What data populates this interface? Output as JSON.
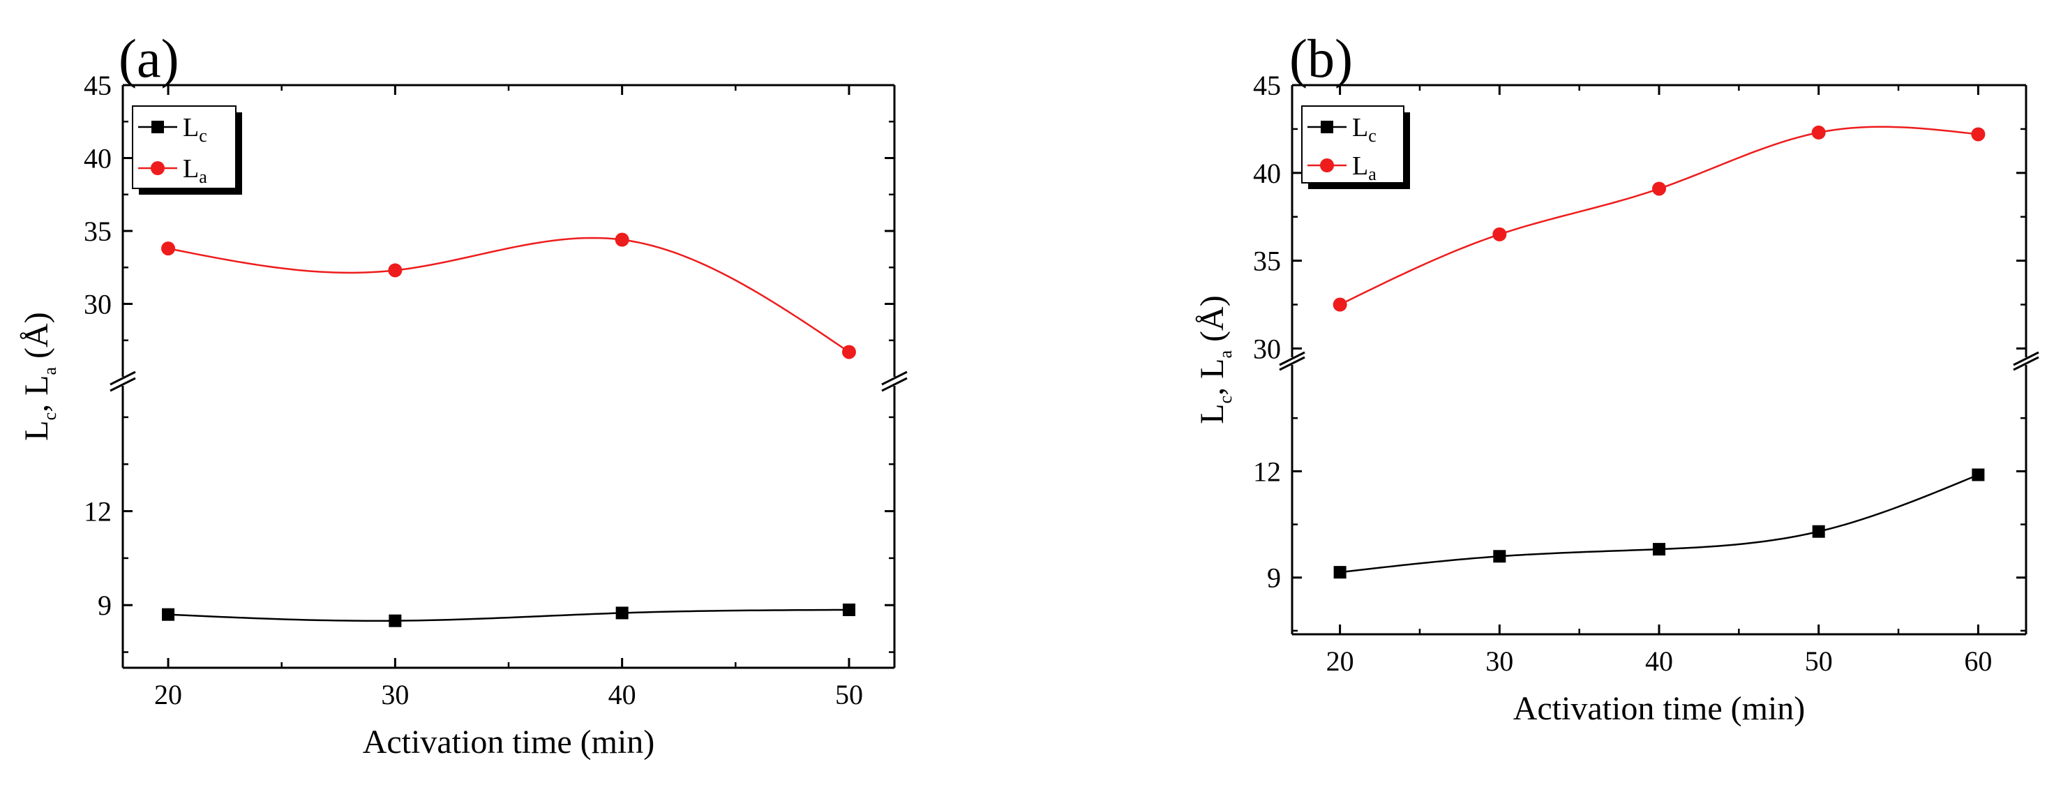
{
  "chart_data": [
    {
      "panel_label": "(a)",
      "type": "line",
      "xlabel": "Activation time (min)",
      "ylabel_parts": [
        "L",
        "c",
        ", L",
        "a",
        " (Å)"
      ],
      "x": [
        20,
        30,
        40,
        50
      ],
      "x_ticks": [
        "20",
        "30",
        "40",
        "50"
      ],
      "xlim": [
        18,
        52
      ],
      "y_axis_break": true,
      "upper_ylim": [
        25,
        45
      ],
      "upper_y_ticks": [
        "30",
        "35",
        "40",
        "45"
      ],
      "lower_ylim": [
        7,
        16
      ],
      "lower_y_ticks": [
        "9",
        "12"
      ],
      "grid": false,
      "legend_placement": "top-left",
      "series": [
        {
          "name": "L",
          "name_sub": "c",
          "color": "#000000",
          "marker": "square",
          "axis": "lower",
          "values": [
            8.7,
            8.5,
            8.75,
            8.85
          ]
        },
        {
          "name": "L",
          "name_sub": "a",
          "color": "#ee1c1c",
          "marker": "circle",
          "axis": "upper",
          "values": [
            33.8,
            32.3,
            34.4,
            26.7
          ]
        }
      ]
    },
    {
      "panel_label": "(b)",
      "type": "line",
      "xlabel": "Activation time (min)",
      "ylabel_parts": [
        "L",
        "c",
        ", L",
        "a",
        " (Å)"
      ],
      "x": [
        20,
        30,
        40,
        50,
        60
      ],
      "x_ticks": [
        "20",
        "30",
        "40",
        "50",
        "60"
      ],
      "xlim": [
        17,
        63
      ],
      "y_axis_break": true,
      "upper_ylim": [
        29.5,
        45
      ],
      "upper_y_ticks": [
        "30",
        "35",
        "40",
        "45"
      ],
      "lower_ylim": [
        7.4,
        15
      ],
      "lower_y_ticks": [
        "9",
        "12"
      ],
      "grid": false,
      "legend_placement": "top-left",
      "series": [
        {
          "name": "L",
          "name_sub": "c",
          "color": "#000000",
          "marker": "square",
          "axis": "lower",
          "values": [
            9.15,
            9.6,
            9.8,
            10.3,
            11.9
          ]
        },
        {
          "name": "L",
          "name_sub": "a",
          "color": "#ee1c1c",
          "marker": "circle",
          "axis": "upper",
          "values": [
            32.5,
            36.5,
            39.1,
            42.3,
            42.2
          ]
        }
      ]
    }
  ]
}
